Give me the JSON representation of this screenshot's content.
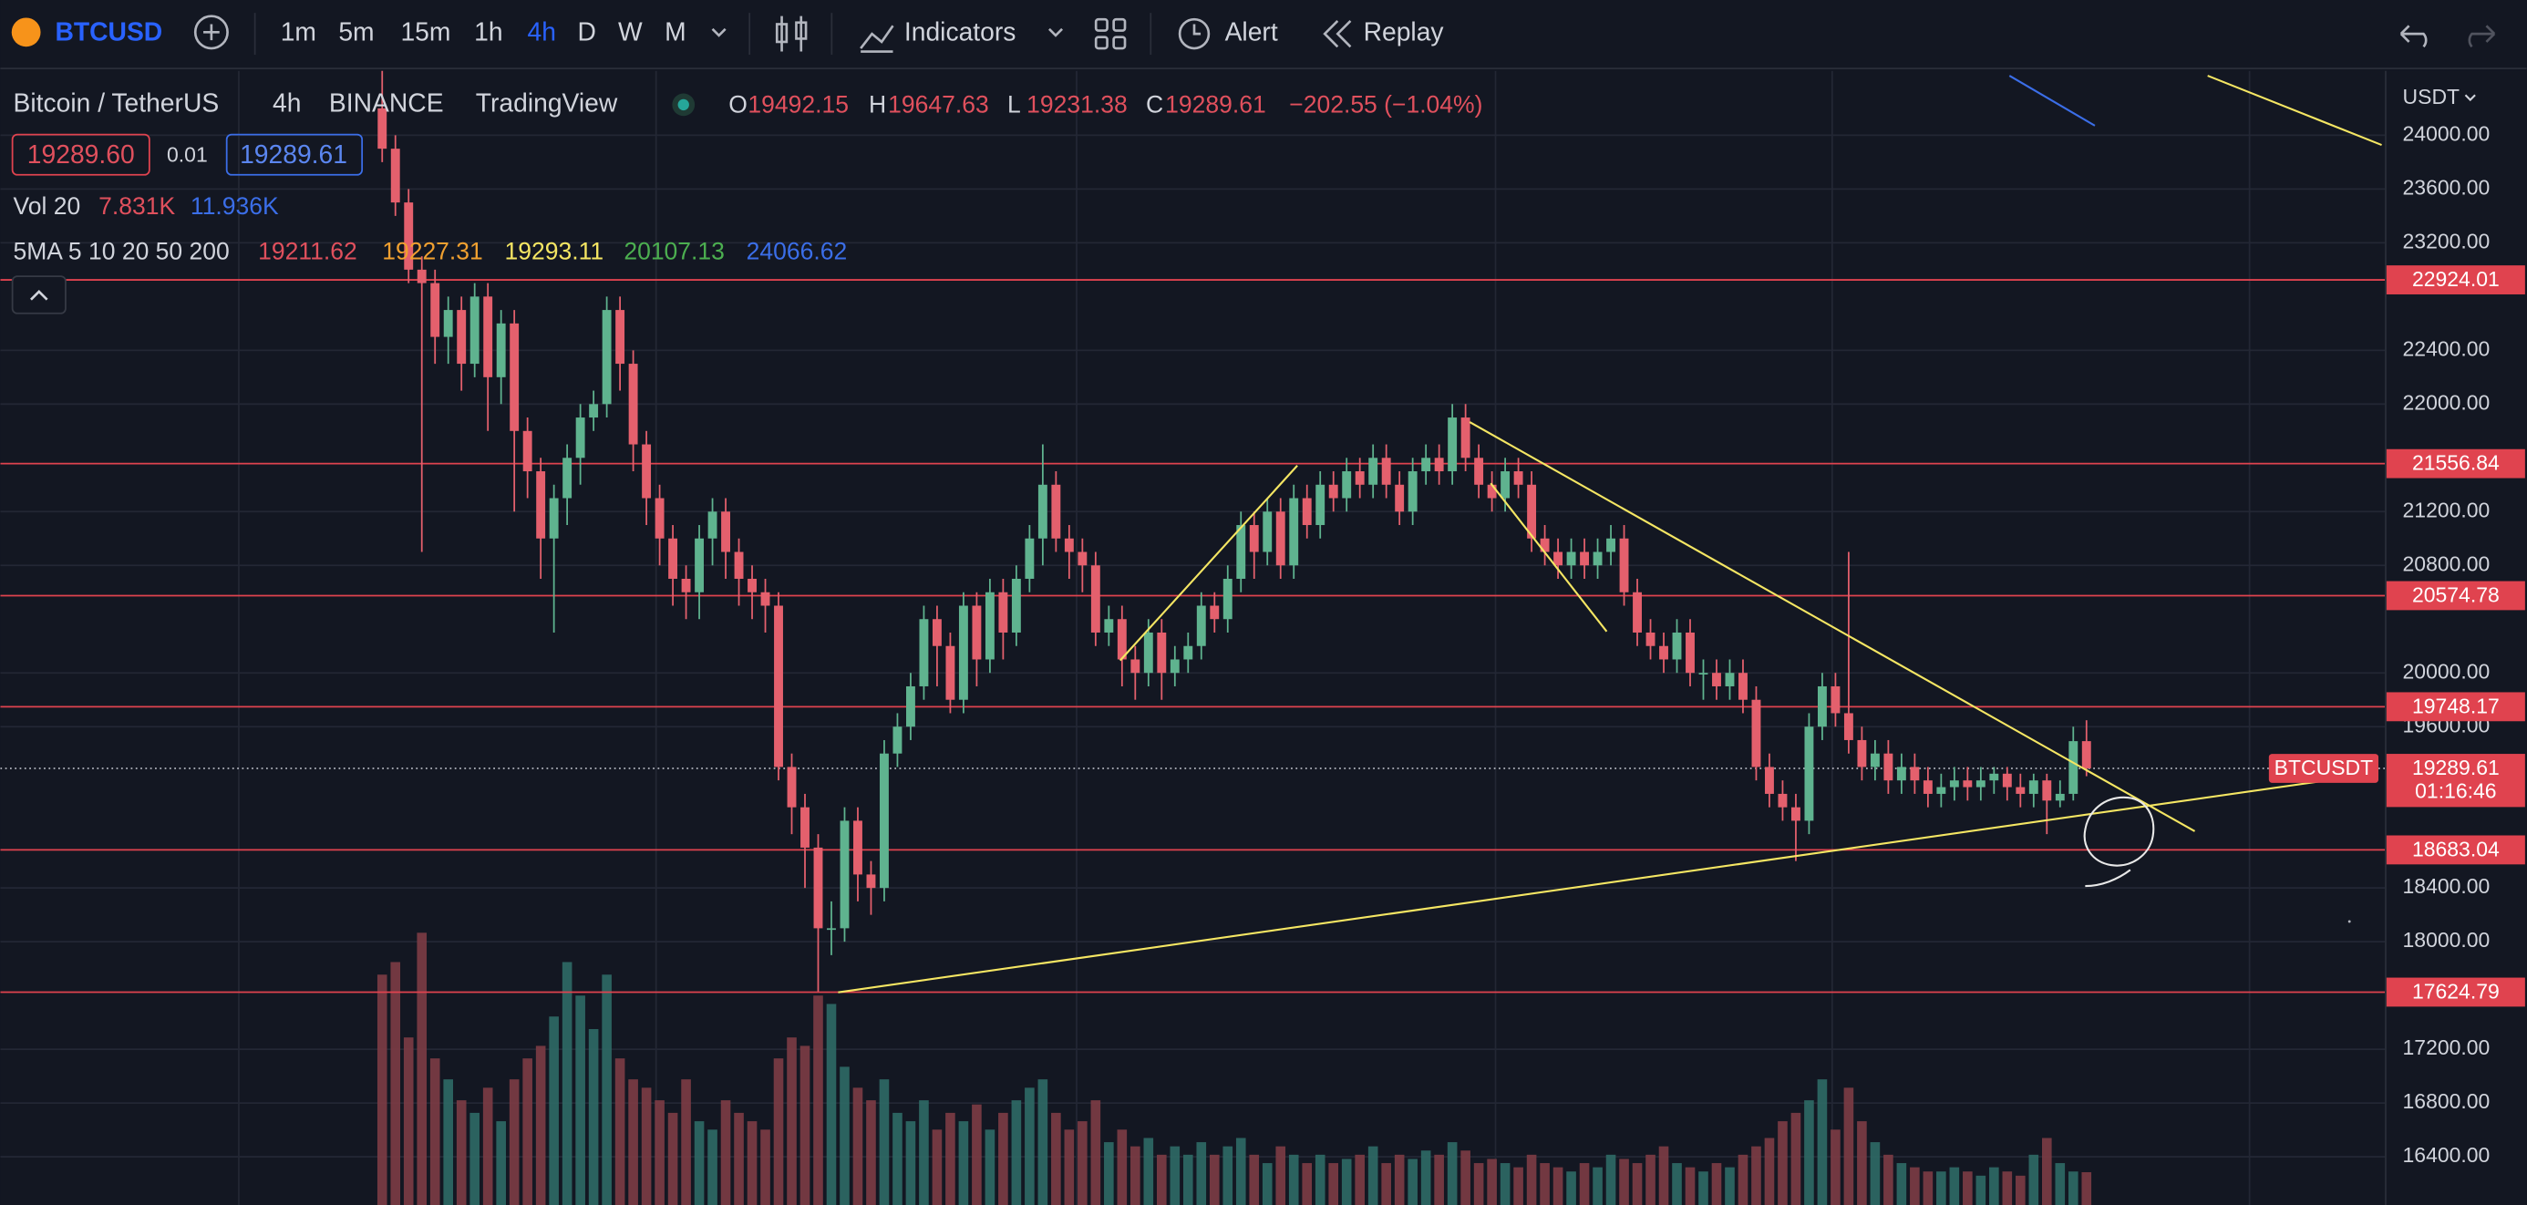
{
  "toolbar": {
    "symbol": "BTCUSD",
    "timeframes": [
      "1m",
      "5m",
      "15m",
      "1h",
      "4h",
      "D",
      "W",
      "M"
    ],
    "active_timeframe": "4h",
    "indicators": "Indicators",
    "alert": "Alert",
    "replay": "Replay"
  },
  "legend": {
    "name": "Bitcoin / TetherUS",
    "interval": "4h",
    "exchange": "BINANCE",
    "source": "TradingView",
    "ohlc": [
      {
        "label": "O",
        "value": 19492.15
      },
      {
        "label": "H",
        "value": 19647.63
      },
      {
        "label": "L",
        "value": 19231.38
      },
      {
        "label": "C",
        "value": 19289.61
      }
    ],
    "change": "−202.55 (−1.04%)",
    "bid": "19289.60",
    "spread": 0.01,
    "ask": 19289.61
  },
  "volume_legend": {
    "label": "Vol 20",
    "values": [
      "7.831K",
      "11.936K"
    ],
    "colors": [
      "#e0505d",
      "#3b6ee8"
    ]
  },
  "ma_legend": {
    "label": "5MA 5 10 20 50 200",
    "values": [
      19211.62,
      19227.31,
      19293.11,
      20107.13,
      24066.62
    ],
    "colors": [
      "#e0505d",
      "#f0a030",
      "#f5e663",
      "#4caf50",
      "#3b6ee8"
    ]
  },
  "chart": {
    "currency": "USDT",
    "ylim": [
      16041,
      24479
    ],
    "yticks": [
      {
        "value": 24000,
        "label": "24000.00"
      },
      {
        "value": 23600,
        "label": "23600.00"
      },
      {
        "value": 23200,
        "label": "23200.00"
      },
      {
        "value": 22400,
        "label": "22400.00"
      },
      {
        "value": 22000,
        "label": "22000.00"
      },
      {
        "value": 21200,
        "label": "21200.00"
      },
      {
        "value": 20800,
        "label": "20800.00"
      },
      {
        "value": 20000,
        "label": "20000.00"
      },
      {
        "value": 19600,
        "label": "19600.00"
      },
      {
        "value": 18400,
        "label": "18400.00"
      },
      {
        "value": 18000,
        "label": "18000.00"
      },
      {
        "value": 17200,
        "label": "17200.00"
      },
      {
        "value": 16800,
        "label": "16800.00"
      },
      {
        "value": 16400,
        "label": "16400.00"
      }
    ],
    "levels": [
      22924.01,
      21556.84,
      20574.78,
      19748.17,
      18683.04,
      17624.79
    ],
    "last_price": {
      "symbol": "BTCUSDT",
      "value": 19289.61,
      "countdown": "01:16:46"
    },
    "up_color": "#5fb38f",
    "down_color": "#e4606d",
    "level_color": "#e0434f",
    "candles": {
      "open": [
        24200,
        23900,
        23500,
        23000,
        22900,
        22500,
        22700,
        22300,
        22800,
        22200,
        22600,
        21800,
        21500,
        21000,
        21300,
        21600,
        21900,
        22000,
        22700,
        22300,
        21700,
        21300,
        21000,
        20700,
        20600,
        21000,
        21200,
        20900,
        20700,
        20600,
        20500,
        19300,
        19000,
        18700,
        18100,
        18100,
        18900,
        18500,
        18400,
        19400,
        19600,
        19900,
        20400,
        20200,
        19800,
        20500,
        20100,
        20600,
        20300,
        20700,
        21000,
        21400,
        21000,
        20900,
        20800,
        20300,
        20400,
        20100,
        20000,
        20300,
        20000,
        20100,
        20200,
        20500,
        20400,
        20700,
        21100,
        20900,
        21200,
        20800,
        21300,
        21100,
        21400,
        21300,
        21500,
        21400,
        21600,
        21400,
        21200,
        21500,
        21600,
        21500,
        21900,
        21600,
        21400,
        21300,
        21500,
        21400,
        21000,
        20900,
        20800,
        20900,
        20800,
        20900,
        21000,
        20600,
        20300,
        20200,
        20100,
        20300,
        20000,
        20000,
        19900,
        20000,
        19800,
        19300,
        19100,
        19000,
        18900,
        19600,
        19900,
        19700,
        19500,
        19300,
        19400,
        19200,
        19300,
        19200,
        19100,
        19150,
        19200,
        19150,
        19200,
        19250,
        19150,
        19100,
        19200,
        19050,
        19100,
        19492.15
      ],
      "high": [
        24500,
        24000,
        23600,
        23100,
        23000,
        22800,
        22800,
        22900,
        22900,
        22700,
        22700,
        21900,
        21600,
        21400,
        21700,
        22000,
        22100,
        22800,
        22800,
        22400,
        21800,
        21400,
        21100,
        20800,
        21100,
        21300,
        21300,
        21000,
        20800,
        20700,
        20600,
        19400,
        19100,
        18800,
        18300,
        19000,
        19000,
        18600,
        19500,
        19700,
        20000,
        20500,
        20500,
        20300,
        20600,
        20600,
        20700,
        20700,
        20800,
        21100,
        21700,
        21500,
        21100,
        21000,
        20900,
        20500,
        20500,
        20200,
        20400,
        20400,
        20200,
        20300,
        20600,
        20600,
        20800,
        21200,
        21200,
        21300,
        21300,
        21400,
        21400,
        21500,
        21500,
        21600,
        21600,
        21700,
        21700,
        21500,
        21600,
        21700,
        21700,
        22000,
        22000,
        21700,
        21500,
        21600,
        21600,
        21500,
        21100,
        21000,
        21000,
        21000,
        21000,
        21100,
        21100,
        20700,
        20400,
        20300,
        20400,
        20400,
        20100,
        20100,
        20100,
        20100,
        19900,
        19400,
        19200,
        19100,
        19700,
        20000,
        20000,
        20900,
        19600,
        19500,
        19500,
        19400,
        19400,
        19300,
        19250,
        19300,
        19300,
        19300,
        19300,
        19300,
        19250,
        19250,
        19250,
        19200,
        19600,
        19647.63
      ],
      "low": [
        23800,
        23400,
        22900,
        20900,
        22300,
        22300,
        22100,
        22200,
        21800,
        22000,
        21200,
        21300,
        20700,
        20300,
        21100,
        21400,
        21800,
        21900,
        22100,
        21500,
        21100,
        20800,
        20500,
        20400,
        20400,
        20800,
        20700,
        20500,
        20400,
        20300,
        19200,
        18800,
        18400,
        17630,
        17900,
        18000,
        18300,
        18200,
        18300,
        19300,
        19500,
        19800,
        19900,
        19700,
        19700,
        19900,
        20000,
        20100,
        20200,
        20600,
        20800,
        20900,
        20700,
        20600,
        20200,
        20200,
        19900,
        19800,
        19900,
        19800,
        19900,
        20000,
        20100,
        20300,
        20300,
        20600,
        20700,
        20800,
        20700,
        20700,
        21000,
        21000,
        21200,
        21200,
        21300,
        21300,
        21300,
        21100,
        21100,
        21400,
        21400,
        21400,
        21500,
        21300,
        21200,
        21200,
        21300,
        20900,
        20800,
        20700,
        20700,
        20700,
        20700,
        20800,
        20500,
        20200,
        20100,
        20000,
        20000,
        19900,
        19800,
        19800,
        19800,
        19700,
        19200,
        19000,
        18900,
        18600,
        18800,
        19500,
        19600,
        19400,
        19200,
        19200,
        19100,
        19100,
        19100,
        19000,
        19000,
        19050,
        19050,
        19050,
        19100,
        19050,
        19000,
        19000,
        18800,
        19000,
        19050,
        19231.38
      ],
      "close": [
        23900,
        23500,
        23000,
        22900,
        22500,
        22700,
        22300,
        22800,
        22200,
        22600,
        21800,
        21500,
        21000,
        21300,
        21600,
        21900,
        22000,
        22700,
        22300,
        21700,
        21300,
        21000,
        20700,
        20600,
        21000,
        21200,
        20900,
        20700,
        20600,
        20500,
        19300,
        19000,
        18700,
        18100,
        18100,
        18900,
        18500,
        18400,
        19400,
        19600,
        19900,
        20400,
        20200,
        19800,
        20500,
        20100,
        20600,
        20300,
        20700,
        21000,
        21400,
        21000,
        20900,
        20800,
        20300,
        20400,
        20100,
        20000,
        20300,
        20000,
        20100,
        20200,
        20500,
        20400,
        20700,
        21100,
        20900,
        21200,
        20800,
        21300,
        21100,
        21400,
        21300,
        21500,
        21400,
        21600,
        21400,
        21200,
        21500,
        21600,
        21500,
        21900,
        21600,
        21400,
        21300,
        21500,
        21400,
        21000,
        20900,
        20800,
        20900,
        20800,
        20900,
        21000,
        20600,
        20300,
        20200,
        20100,
        20300,
        20000,
        20000,
        19900,
        20000,
        19800,
        19300,
        19100,
        19000,
        18900,
        19600,
        19900,
        19700,
        19500,
        19300,
        19400,
        19200,
        19300,
        19200,
        19100,
        19150,
        19200,
        19150,
        19200,
        19250,
        19150,
        19100,
        19200,
        19050,
        19100,
        19492.15,
        19289.61
      ]
    },
    "volume": [
      55,
      58,
      40,
      65,
      35,
      30,
      25,
      22,
      28,
      20,
      30,
      35,
      38,
      45,
      58,
      50,
      42,
      55,
      35,
      30,
      28,
      25,
      22,
      30,
      20,
      18,
      25,
      22,
      20,
      18,
      35,
      40,
      38,
      50,
      48,
      33,
      28,
      25,
      30,
      22,
      20,
      25,
      18,
      22,
      20,
      24,
      18,
      22,
      25,
      28,
      30,
      22,
      18,
      20,
      25,
      15,
      18,
      14,
      16,
      12,
      14,
      12,
      15,
      12,
      14,
      16,
      12,
      10,
      14,
      12,
      10,
      12,
      10,
      11,
      12,
      14,
      10,
      12,
      11,
      13,
      12,
      15,
      13,
      10,
      11,
      10,
      9,
      12,
      10,
      9,
      8,
      10,
      9,
      12,
      11,
      10,
      12,
      14,
      10,
      9,
      8,
      10,
      9,
      12,
      14,
      16,
      20,
      22,
      25,
      30,
      18,
      28,
      20,
      15,
      12,
      10,
      9,
      8,
      8,
      9,
      8,
      7,
      9,
      8,
      7,
      12,
      16,
      10,
      8,
      7.831
    ]
  }
}
